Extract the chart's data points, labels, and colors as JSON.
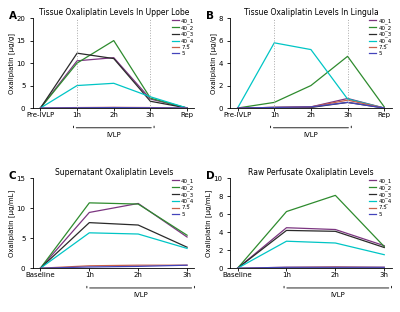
{
  "panel_A": {
    "title": "Tissue Oxaliplatin Levels In Upper Lobe",
    "ylabel": "Oxaliplatin [μg/g]",
    "xticks": [
      "Pre-IVLP",
      "1h",
      "2h",
      "3h",
      "Rep"
    ],
    "ylim": [
      0,
      20
    ],
    "yticks": [
      0,
      5,
      10,
      15,
      20
    ],
    "series": {
      "40_1": {
        "color": "#7B3580",
        "data": [
          0,
          10.5,
          11.2,
          2.0,
          0.0
        ]
      },
      "40_2": {
        "color": "#2E8B2E",
        "data": [
          0,
          10.0,
          15.0,
          2.2,
          0.0
        ]
      },
      "40_3": {
        "color": "#2A2A2A",
        "data": [
          0,
          12.2,
          11.0,
          1.5,
          0.0
        ]
      },
      "40_4": {
        "color": "#00C5C5",
        "data": [
          0,
          5.0,
          5.5,
          2.5,
          0.0
        ]
      },
      "7.5": {
        "color": "#C8604A",
        "data": [
          0,
          0.1,
          0.15,
          0.1,
          0.0
        ]
      },
      "5": {
        "color": "#4444BB",
        "data": [
          0,
          0.05,
          0.1,
          0.05,
          0.0
        ]
      }
    },
    "vlines": [
      1,
      3
    ],
    "bracket": [
      1,
      3
    ],
    "bracket_label": "IVLP"
  },
  "panel_B": {
    "title": "Tissue Oxaliplatin Levels In Lingula",
    "ylabel": "Oxaliplatin [μg/g]",
    "xticks": [
      "Pre-IVLP",
      "1h",
      "2h",
      "3h",
      "Rep"
    ],
    "ylim": [
      0,
      8
    ],
    "yticks": [
      0,
      2,
      4,
      6,
      8
    ],
    "series": {
      "40_1": {
        "color": "#7B3580",
        "data": [
          0,
          0.05,
          0.1,
          0.85,
          0.0
        ]
      },
      "40_2": {
        "color": "#2E8B2E",
        "data": [
          0,
          0.5,
          2.0,
          4.6,
          0.1
        ]
      },
      "40_3": {
        "color": "#2A2A2A",
        "data": [
          0,
          0.05,
          0.05,
          0.5,
          0.0
        ]
      },
      "40_4": {
        "color": "#00C5C5",
        "data": [
          0,
          5.8,
          5.2,
          0.8,
          0.0
        ]
      },
      "7.5": {
        "color": "#C8604A",
        "data": [
          0,
          0.05,
          0.1,
          0.7,
          0.0
        ]
      },
      "5": {
        "color": "#4444BB",
        "data": [
          0,
          0.05,
          0.1,
          0.5,
          0.0
        ]
      }
    },
    "vlines": [
      1,
      3
    ],
    "bracket": [
      1,
      3
    ],
    "bracket_label": "IVLP"
  },
  "panel_C": {
    "title": "Supernatant Oxaliplatin Levels",
    "ylabel": "Oxaliplatin [μg/mL]",
    "xticks": [
      "Baseline",
      "1h",
      "2h",
      "3h"
    ],
    "ylim": [
      0,
      15
    ],
    "yticks": [
      0,
      5,
      10,
      15
    ],
    "series": {
      "40_1": {
        "color": "#7B3580",
        "data": [
          0,
          9.3,
          10.8,
          5.2
        ]
      },
      "40_2": {
        "color": "#2E8B2E",
        "data": [
          0,
          10.9,
          10.7,
          5.5
        ]
      },
      "40_3": {
        "color": "#2A2A2A",
        "data": [
          0,
          7.6,
          7.2,
          3.5
        ]
      },
      "40_4": {
        "color": "#00C5C5",
        "data": [
          0,
          5.9,
          5.7,
          3.3
        ]
      },
      "7.5": {
        "color": "#C8604A",
        "data": [
          0,
          0.4,
          0.5,
          0.5
        ]
      },
      "5": {
        "color": "#4444BB",
        "data": [
          0,
          0.2,
          0.3,
          0.5
        ]
      }
    },
    "bracket": [
      1,
      3
    ],
    "bracket_label": "IVLP"
  },
  "panel_D": {
    "title": "Raw Perfusate Oxaliplatin Levels",
    "ylabel": "Oxaliplatin [μg/mL]",
    "xticks": [
      "Baseline",
      "1h",
      "2h",
      "3h"
    ],
    "ylim": [
      0,
      10
    ],
    "yticks": [
      0,
      2,
      4,
      6,
      8,
      10
    ],
    "series": {
      "40_1": {
        "color": "#7B3580",
        "data": [
          0,
          4.5,
          4.3,
          2.5
        ]
      },
      "40_2": {
        "color": "#2E8B2E",
        "data": [
          0,
          6.3,
          8.1,
          2.4
        ]
      },
      "40_3": {
        "color": "#2A2A2A",
        "data": [
          0,
          4.2,
          4.1,
          2.3
        ]
      },
      "40_4": {
        "color": "#00C5C5",
        "data": [
          0,
          3.0,
          2.8,
          1.5
        ]
      },
      "7.5": {
        "color": "#C8604A",
        "data": [
          0,
          0.1,
          0.15,
          0.1
        ]
      },
      "5": {
        "color": "#4444BB",
        "data": [
          0,
          0.1,
          0.1,
          0.1
        ]
      }
    },
    "bracket": [
      1,
      3
    ],
    "bracket_label": "IVLP"
  },
  "legend_labels": [
    "40_1",
    "40_2",
    "40_3",
    "40_4",
    "7.5",
    "5"
  ],
  "legend_colors": [
    "#7B3580",
    "#2E8B2E",
    "#2A2A2A",
    "#00C5C5",
    "#C8604A",
    "#4444BB"
  ],
  "bg_color": "#FFFFFF"
}
